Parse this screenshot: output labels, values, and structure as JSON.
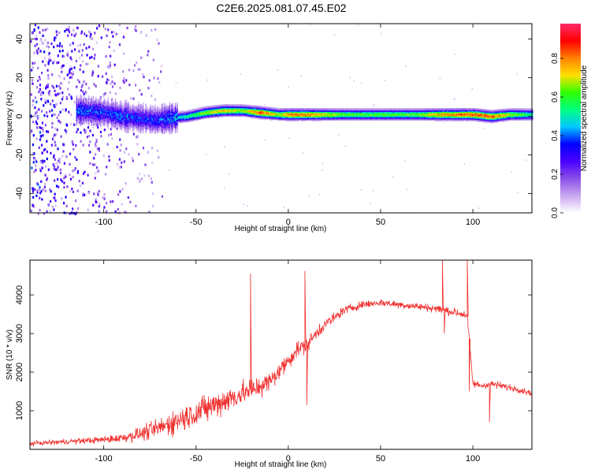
{
  "title": "C2E6.2025.081.07.45.E02",
  "chart_data": [
    {
      "type": "heatmap",
      "xlabel": "Height of straight line (km)",
      "ylabel": "Frequency (Hz)",
      "xlim": [
        -140,
        132
      ],
      "ylim": [
        -50,
        48
      ],
      "xticks": [
        -100,
        -50,
        0,
        50,
        100
      ],
      "yticks": [
        -40,
        -20,
        0,
        20,
        40
      ],
      "colorbar": {
        "label": "Normalized spectral amplitude",
        "range": [
          0.0,
          0.98
        ],
        "ticks": [
          "0.0",
          "0.2",
          "0.4",
          "0.6",
          "0.8"
        ],
        "tick_values": [
          0.0,
          0.2,
          0.4,
          0.6,
          0.8
        ],
        "colormap": [
          "#ffffff",
          "#c8a8f0",
          "#8a4ee8",
          "#4b00ff",
          "#0000ff",
          "#00c8ff",
          "#00ff80",
          "#30ff00",
          "#ffe000",
          "#ff8000",
          "#ff0000",
          "#ff2a6a"
        ]
      },
      "ridge": {
        "x": [
          -112,
          -100,
          -90,
          -80,
          -72,
          -65,
          -55,
          -45,
          -35,
          -25,
          -15,
          -5,
          0,
          10,
          20,
          30,
          50,
          70,
          80,
          90,
          100,
          110,
          120,
          132
        ],
        "freq": [
          3,
          2,
          0,
          -1,
          -2,
          -1,
          0,
          2,
          3,
          3,
          2,
          1,
          1,
          1,
          1,
          1,
          1,
          1,
          1,
          1,
          1,
          0,
          1,
          1
        ],
        "amplitude": [
          0.45,
          0.4,
          0.45,
          0.4,
          0.4,
          0.45,
          0.55,
          0.7,
          0.75,
          0.7,
          0.9,
          0.7,
          0.85,
          0.85,
          0.75,
          0.65,
          0.65,
          0.65,
          0.8,
          0.85,
          0.9,
          0.9,
          0.7,
          0.55
        ]
      }
    },
    {
      "type": "line",
      "xlabel": "Height of straight line (km)",
      "ylabel": "SNR (10 * v/v)",
      "xlim": [
        -140,
        132
      ],
      "ylim": [
        0,
        4900
      ],
      "xticks": [
        -100,
        -50,
        0,
        50,
        100
      ],
      "yticks": [
        1000,
        2000,
        3000,
        4000
      ],
      "color": "#f0302e",
      "envelope": {
        "x": [
          -140,
          -120,
          -100,
          -90,
          -80,
          -70,
          -60,
          -50,
          -40,
          -30,
          -20,
          -10,
          0,
          5,
          10,
          15,
          20,
          25,
          30,
          40,
          50,
          60,
          70,
          80,
          85,
          90,
          95,
          97,
          100,
          105,
          110,
          115,
          120,
          125,
          132
        ],
        "y": [
          150,
          200,
          250,
          300,
          400,
          550,
          750,
          950,
          1150,
          1350,
          1550,
          1750,
          2300,
          2600,
          2700,
          3000,
          3250,
          3400,
          3600,
          3750,
          3800,
          3750,
          3700,
          3650,
          3600,
          3550,
          3500,
          3450,
          1700,
          1650,
          1700,
          1650,
          1600,
          1550,
          1450
        ],
        "noise": [
          80,
          100,
          130,
          180,
          260,
          380,
          480,
          520,
          520,
          500,
          450,
          380,
          330,
          300,
          280,
          260,
          240,
          200,
          170,
          150,
          140,
          140,
          140,
          150,
          160,
          170,
          170,
          170,
          150,
          140,
          130,
          130,
          120,
          120,
          120
        ]
      },
      "spikes": [
        {
          "x": -20.5,
          "y": 4550
        },
        {
          "x": -20,
          "y": 1400
        },
        {
          "x": 9,
          "y": 4620
        },
        {
          "x": 10,
          "y": 1150
        },
        {
          "x": 83.5,
          "y": 4900
        },
        {
          "x": 84.5,
          "y": 3000
        },
        {
          "x": 97,
          "y": 4900
        },
        {
          "x": 98,
          "y": 1500
        },
        {
          "x": 109,
          "y": 700
        }
      ]
    }
  ]
}
